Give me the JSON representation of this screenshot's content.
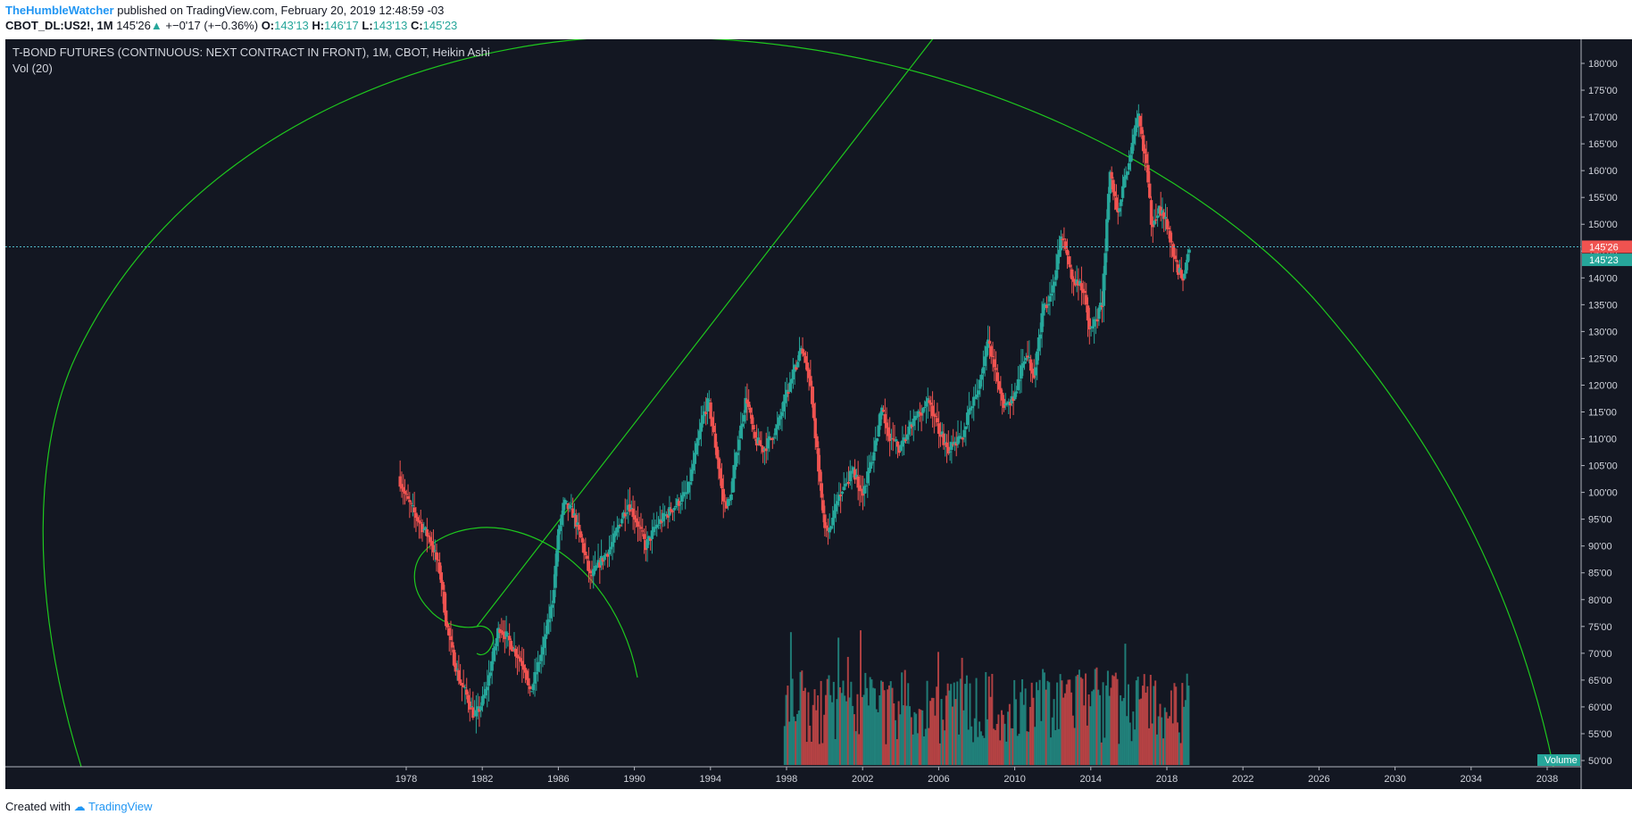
{
  "header": {
    "author": "TheHumbleWatcher",
    "published_text": "published on TradingView.com, February 20, 2019 12:48:59 -03",
    "symbol": "CBOT_DL:US2!, 1M",
    "last_price": "145'26",
    "change": "+−0'17 (+−0.36%)",
    "o_label": "O:",
    "o_value": "143'13",
    "h_label": "H:",
    "h_value": "146'17",
    "l_label": "L:",
    "l_value": "143'13",
    "c_label": "C:",
    "c_value": "145'23"
  },
  "colors": {
    "background": "#131722",
    "up": "#26a69a",
    "down": "#ef5350",
    "drawing": "#1ec81e",
    "volume_up": "#26a69a",
    "volume_down": "#ef5350"
  },
  "chart_data": {
    "type": "candlestick",
    "title": "T-BOND FUTURES (CONTINUOUS: NEXT CONTRACT IN FRONT), 1M, CBOT, Heikin Ashi",
    "indicator_label": "Vol (20)",
    "volume_label": "Volume",
    "xlabel": "",
    "ylabel": "",
    "x_ticks": [
      "1978",
      "1982",
      "1986",
      "1990",
      "1994",
      "1998",
      "2002",
      "2006",
      "2010",
      "2014",
      "2018",
      "2022",
      "2026",
      "2030",
      "2034",
      "2038"
    ],
    "y_ticks": [
      "50'00",
      "55'00",
      "60'00",
      "65'00",
      "70'00",
      "75'00",
      "80'00",
      "85'00",
      "90'00",
      "95'00",
      "100'00",
      "105'00",
      "110'00",
      "115'00",
      "120'00",
      "125'00",
      "130'00",
      "135'00",
      "140'00",
      "145'00",
      "150'00",
      "155'00",
      "160'00",
      "165'00",
      "170'00",
      "175'00",
      "180'00"
    ],
    "xlim": [
      1975.5,
      2040
    ],
    "ylim": [
      49.3,
      181.3
    ],
    "price_labels": {
      "last": "145'26",
      "close": "145'23"
    },
    "price_anchors": [
      [
        1977.6,
        103
      ],
      [
        1978.0,
        99
      ],
      [
        1978.6,
        95
      ],
      [
        1979.3,
        91
      ],
      [
        1979.8,
        85
      ],
      [
        1980.1,
        76
      ],
      [
        1980.5,
        69
      ],
      [
        1980.8,
        65
      ],
      [
        1981.2,
        62
      ],
      [
        1981.6,
        58
      ],
      [
        1981.9,
        60
      ],
      [
        1982.2,
        63
      ],
      [
        1982.6,
        70
      ],
      [
        1982.9,
        75
      ],
      [
        1983.3,
        73
      ],
      [
        1983.8,
        70
      ],
      [
        1984.3,
        67
      ],
      [
        1984.5,
        62
      ],
      [
        1984.8,
        66
      ],
      [
        1985.2,
        71
      ],
      [
        1985.7,
        80
      ],
      [
        1986.0,
        92
      ],
      [
        1986.3,
        98
      ],
      [
        1986.8,
        96
      ],
      [
        1987.3,
        90
      ],
      [
        1987.7,
        84
      ],
      [
        1988.2,
        87
      ],
      [
        1988.8,
        90
      ],
      [
        1989.3,
        95
      ],
      [
        1989.7,
        98
      ],
      [
        1990.2,
        94
      ],
      [
        1990.6,
        90
      ],
      [
        1991.2,
        94
      ],
      [
        1992.0,
        97
      ],
      [
        1992.8,
        100
      ],
      [
        1993.6,
        114
      ],
      [
        1993.9,
        117
      ],
      [
        1994.3,
        108
      ],
      [
        1994.7,
        98
      ],
      [
        1995.0,
        98
      ],
      [
        1995.5,
        110
      ],
      [
        1995.9,
        118
      ],
      [
        1996.3,
        110
      ],
      [
        1996.8,
        108
      ],
      [
        1997.5,
        112
      ],
      [
        1998.0,
        118
      ],
      [
        1998.8,
        127
      ],
      [
        1999.2,
        122
      ],
      [
        1999.6,
        108
      ],
      [
        1999.9,
        96
      ],
      [
        2000.2,
        92
      ],
      [
        2000.8,
        100
      ],
      [
        2001.5,
        104
      ],
      [
        2002.0,
        100
      ],
      [
        2002.5,
        106
      ],
      [
        2003.0,
        115
      ],
      [
        2003.5,
        110
      ],
      [
        2004.0,
        108
      ],
      [
        2004.5,
        112
      ],
      [
        2005.0,
        115
      ],
      [
        2005.5,
        117
      ],
      [
        2006.0,
        112
      ],
      [
        2006.5,
        108
      ],
      [
        2007.2,
        110
      ],
      [
        2007.6,
        115
      ],
      [
        2008.0,
        118
      ],
      [
        2008.6,
        128
      ],
      [
        2009.0,
        122
      ],
      [
        2009.5,
        116
      ],
      [
        2010.0,
        118
      ],
      [
        2010.6,
        126
      ],
      [
        2011.0,
        122
      ],
      [
        2011.5,
        134
      ],
      [
        2012.0,
        138
      ],
      [
        2012.5,
        148
      ],
      [
        2013.0,
        140
      ],
      [
        2013.6,
        138
      ],
      [
        2014.0,
        130
      ],
      [
        2014.6,
        135
      ],
      [
        2015.0,
        160
      ],
      [
        2015.4,
        152
      ],
      [
        2015.9,
        160
      ],
      [
        2016.5,
        170
      ],
      [
        2016.9,
        162
      ],
      [
        2017.2,
        150
      ],
      [
        2017.6,
        153
      ],
      [
        2018.0,
        150
      ],
      [
        2018.5,
        142
      ],
      [
        2018.9,
        140
      ],
      [
        2019.1,
        145
      ]
    ],
    "volume_region": {
      "start": 1997.8,
      "end": 2019.1
    }
  }
}
